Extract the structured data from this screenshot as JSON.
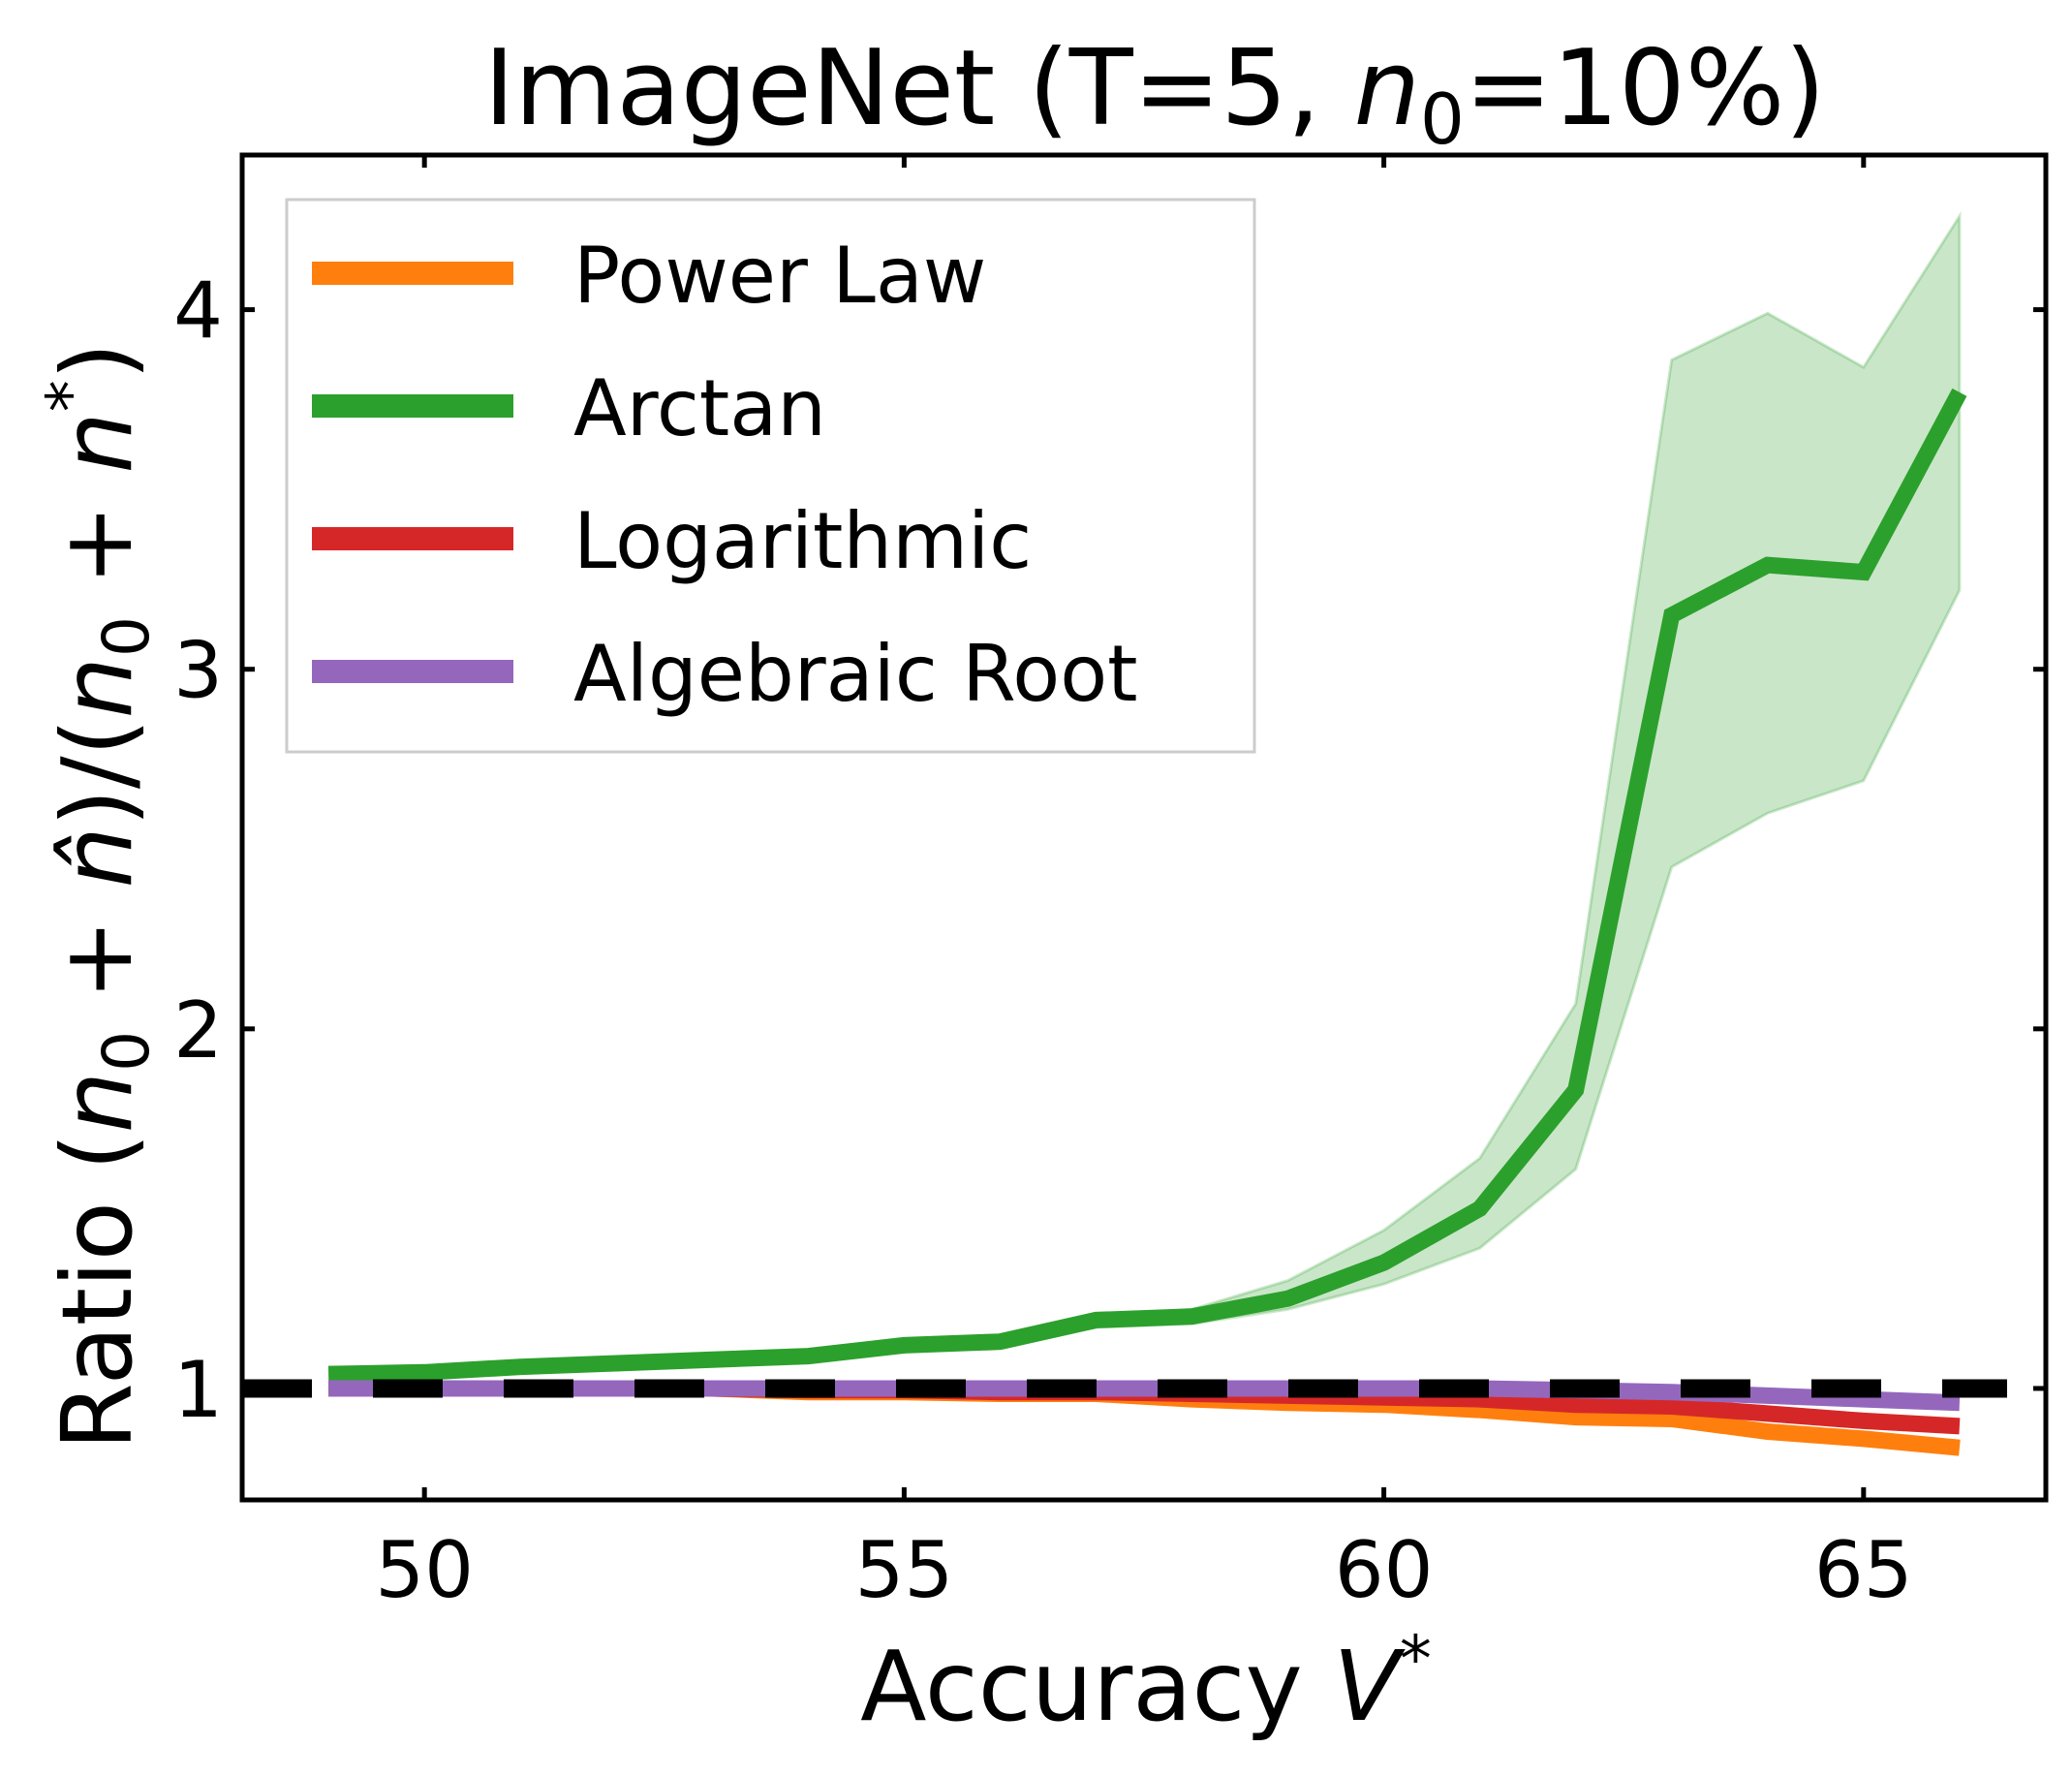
{
  "chart_data": {
    "type": "line",
    "title": "ImageNet (T=5, n0=10%)",
    "title_parts": {
      "prefix": "ImageNet (T=5, ",
      "var": "n",
      "sub": "0",
      "suffix": "=10%)"
    },
    "xlabel": "Accuracy V*",
    "xlabel_parts": {
      "text": "Accuracy ",
      "var": "V",
      "sup": "*"
    },
    "ylabel": "Ratio (n0 + n̂)/(n0 + n*)",
    "ylabel_parts": {
      "a": "Ratio (",
      "n": "n",
      "sub0": "0",
      "plus": " + ",
      "nhat": "n̂",
      "mid": ")/(",
      "star": "*",
      "end": ")"
    },
    "xlim": [
      48.1,
      66.9
    ],
    "ylim": [
      0.69,
      4.43
    ],
    "xticks": [
      50,
      55,
      60,
      65
    ],
    "xtick_labels": [
      "50",
      "55",
      "60",
      "65"
    ],
    "yticks": [
      1,
      2,
      3,
      4
    ],
    "ytick_labels": [
      "1",
      "2",
      "3",
      "4"
    ],
    "grid": false,
    "legend_position": "top-left",
    "x": [
      49,
      50,
      51,
      52,
      53,
      54,
      55,
      56,
      57,
      58,
      59,
      60,
      61,
      62,
      63,
      64,
      65,
      66
    ],
    "series": [
      {
        "name": "Power Law",
        "color": "#ff7f0e",
        "values": [
          1.0,
          1.0,
          1.0,
          1.0,
          1.0,
          0.99,
          0.99,
          0.985,
          0.985,
          0.97,
          0.96,
          0.955,
          0.94,
          0.92,
          0.915,
          0.88,
          0.86,
          0.835
        ]
      },
      {
        "name": "Arctan",
        "color": "#2ca02c",
        "values": [
          1.04,
          1.045,
          1.06,
          1.07,
          1.08,
          1.09,
          1.12,
          1.13,
          1.19,
          1.2,
          1.25,
          1.35,
          1.5,
          1.83,
          3.15,
          3.29,
          3.27,
          3.77
        ],
        "band_lower": [
          1.04,
          1.045,
          1.06,
          1.07,
          1.08,
          1.09,
          1.11,
          1.12,
          1.17,
          1.18,
          1.22,
          1.29,
          1.39,
          1.61,
          2.45,
          2.6,
          2.69,
          3.22
        ],
        "band_upper": [
          1.04,
          1.045,
          1.06,
          1.07,
          1.08,
          1.09,
          1.12,
          1.13,
          1.2,
          1.22,
          1.3,
          1.44,
          1.64,
          2.07,
          3.86,
          3.99,
          3.84,
          4.26
        ],
        "band_color": "#c9e6c9"
      },
      {
        "name": "Logarithmic",
        "color": "#d62728",
        "values": [
          1.0,
          1.0,
          1.0,
          1.0,
          1.0,
          0.995,
          0.995,
          0.99,
          0.99,
          0.985,
          0.98,
          0.975,
          0.97,
          0.955,
          0.95,
          0.93,
          0.91,
          0.895
        ]
      },
      {
        "name": "Algebraic Root",
        "color": "#9467bd",
        "values": [
          1.0,
          1.0,
          1.0,
          1.0,
          1.0,
          1.0,
          1.0,
          1.0,
          1.0,
          1.0,
          1.0,
          1.0,
          1.0,
          0.995,
          0.99,
          0.98,
          0.97,
          0.96
        ]
      }
    ],
    "reference_line": {
      "y": 1,
      "color": "#000000",
      "style": "dashed"
    }
  }
}
